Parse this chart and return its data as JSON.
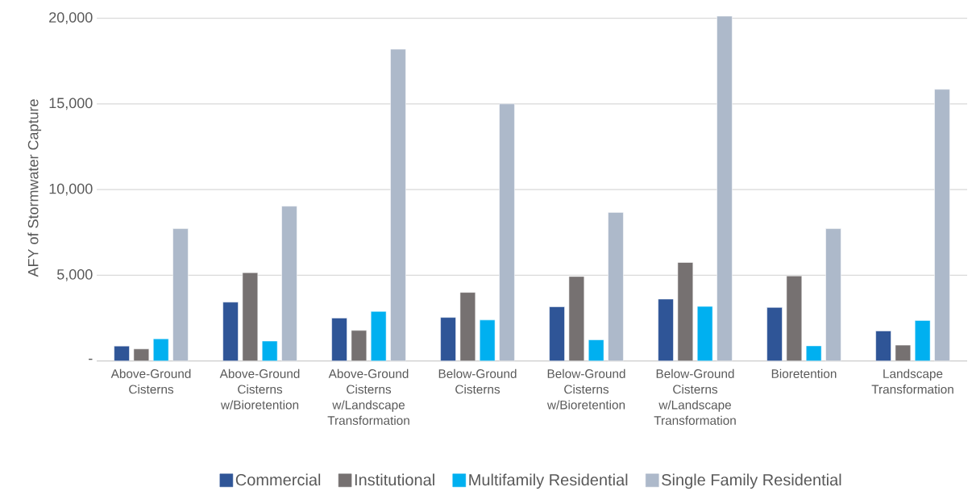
{
  "chart_data": {
    "type": "bar",
    "ylabel": "AFY of Stormwater Capture",
    "categories": [
      "Above-Ground Cisterns",
      "Above-Ground Cisterns w/Bioretention",
      "Above-Ground Cisterns w/Landscape Transformation",
      "Below-Ground Cisterns",
      "Below-Ground Cisterns w/Bioretention",
      "Below-Ground Cisterns w/Landscape Transformation",
      "Bioretention",
      "Landscape Transformation"
    ],
    "series": [
      {
        "name": "Commercial",
        "color": "#2f5597",
        "values": [
          870,
          3430,
          2500,
          2540,
          3160,
          3610,
          3120,
          1750
        ]
      },
      {
        "name": "Institutional",
        "color": "#767171",
        "values": [
          700,
          5150,
          1780,
          4000,
          4930,
          5750,
          4960,
          920
        ]
      },
      {
        "name": "Multifamily Residential",
        "color": "#00b0f0",
        "values": [
          1290,
          1160,
          2890,
          2390,
          1230,
          3180,
          880,
          2360
        ]
      },
      {
        "name": "Single Family Residential",
        "color": "#adb9ca",
        "values": [
          7720,
          9030,
          18190,
          15000,
          8670,
          20120,
          7720,
          15850
        ]
      }
    ],
    "ylim": [
      0,
      20200
    ],
    "yticks": [
      {
        "value": 0,
        "label": "-"
      },
      {
        "value": 5000,
        "label": "5,000"
      },
      {
        "value": 10000,
        "label": "10,000"
      },
      {
        "value": 15000,
        "label": "15,000"
      },
      {
        "value": 20000,
        "label": "20,000"
      }
    ],
    "grid": "y",
    "legend": "bottom"
  }
}
